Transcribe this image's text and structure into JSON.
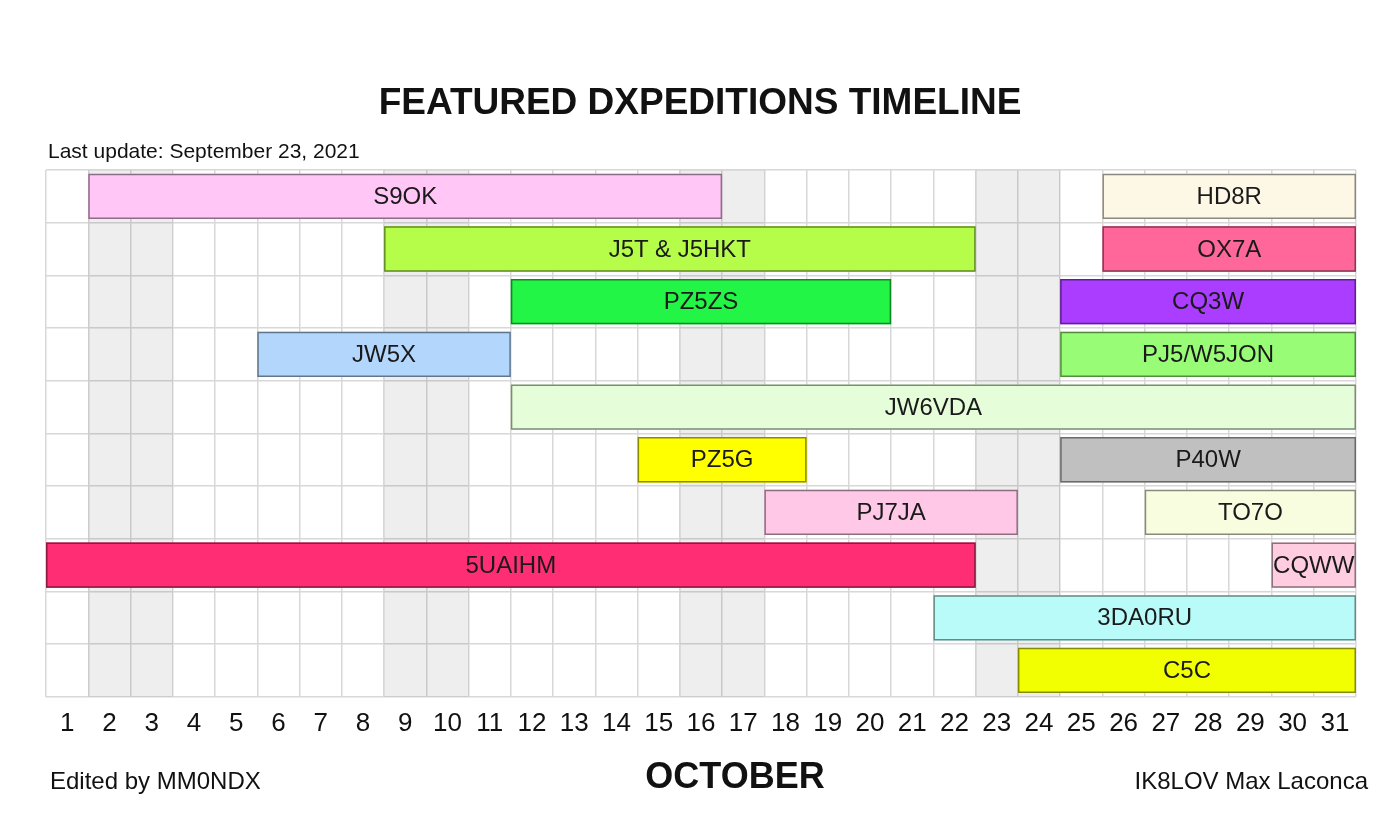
{
  "chart_data": {
    "type": "bar",
    "orientation": "horizontal",
    "title": "FEATURED DXPEDITIONS TIMELINE",
    "subtitle": "Last update: September 23, 2021",
    "xlabel": "OCTOBER",
    "annotations": [
      "Edited by MM0NDX",
      "IK8LOV Max Laconca"
    ],
    "categories": [
      null,
      null,
      null,
      null,
      null,
      null,
      null,
      null,
      null,
      null
    ],
    "series": [
      {
        "name": "S9OK",
        "color": "#ffc6f6",
        "base": [
          1.5,
          null,
          null,
          null,
          null,
          null,
          null,
          null,
          null,
          null
        ],
        "values": [
          15,
          null,
          null,
          null,
          null,
          null,
          null,
          null,
          null,
          null
        ]
      },
      {
        "name": "HD8R",
        "color": "#fdf8e6",
        "base": [
          25.5,
          null,
          null,
          null,
          null,
          null,
          null,
          null,
          null,
          null
        ],
        "values": [
          6,
          null,
          null,
          null,
          null,
          null,
          null,
          null,
          null,
          null
        ]
      },
      {
        "name": "J5T & J5HKT",
        "color": "#b6fd4a",
        "base": [
          null,
          8.5,
          null,
          null,
          null,
          null,
          null,
          null,
          null,
          null
        ],
        "values": [
          null,
          14,
          null,
          null,
          null,
          null,
          null,
          null,
          null,
          null
        ]
      },
      {
        "name": "OX7A",
        "color": "#ff6699",
        "base": [
          null,
          25.5,
          null,
          null,
          null,
          null,
          null,
          null,
          null,
          null
        ],
        "values": [
          null,
          6,
          null,
          null,
          null,
          null,
          null,
          null,
          null,
          null
        ]
      },
      {
        "name": "PZ5ZS",
        "color": "#22f545",
        "base": [
          null,
          null,
          11.5,
          null,
          null,
          null,
          null,
          null,
          null,
          null
        ],
        "values": [
          null,
          null,
          9,
          null,
          null,
          null,
          null,
          null,
          null,
          null
        ]
      },
      {
        "name": "CQ3W",
        "color": "#aa3dff",
        "base": [
          null,
          null,
          24.5,
          null,
          null,
          null,
          null,
          null,
          null,
          null
        ],
        "values": [
          null,
          null,
          7,
          null,
          null,
          null,
          null,
          null,
          null,
          null
        ]
      },
      {
        "name": "JW5X",
        "color": "#b3d6fc",
        "base": [
          null,
          null,
          null,
          5.5,
          null,
          null,
          null,
          null,
          null,
          null
        ],
        "values": [
          null,
          null,
          null,
          6,
          null,
          null,
          null,
          null,
          null,
          null
        ]
      },
      {
        "name": "PJ5/W5JON",
        "color": "#99fc77",
        "base": [
          null,
          null,
          null,
          24.5,
          null,
          null,
          null,
          null,
          null,
          null
        ],
        "values": [
          null,
          null,
          null,
          7,
          null,
          null,
          null,
          null,
          null,
          null
        ]
      },
      {
        "name": "JW6VDA",
        "color": "#e5fdd8",
        "base": [
          null,
          null,
          null,
          null,
          11.5,
          null,
          null,
          null,
          null,
          null
        ],
        "values": [
          null,
          null,
          null,
          null,
          20,
          null,
          null,
          null,
          null,
          null
        ]
      },
      {
        "name": "PZ5G",
        "color": "#ffff00",
        "base": [
          null,
          null,
          null,
          null,
          null,
          14.5,
          null,
          null,
          null,
          null
        ],
        "values": [
          null,
          null,
          null,
          null,
          null,
          4,
          null,
          null,
          null,
          null
        ]
      },
      {
        "name": "P40W",
        "color": "#c0c0c0",
        "base": [
          null,
          null,
          null,
          null,
          null,
          24.5,
          null,
          null,
          null,
          null
        ],
        "values": [
          null,
          null,
          null,
          null,
          null,
          7,
          null,
          null,
          null,
          null
        ]
      },
      {
        "name": "PJ7JA",
        "color": "#ffc8e6",
        "base": [
          null,
          null,
          null,
          null,
          null,
          null,
          17.5,
          null,
          null,
          null
        ],
        "values": [
          null,
          null,
          null,
          null,
          null,
          null,
          6,
          null,
          null,
          null
        ]
      },
      {
        "name": "TO7O",
        "color": "#f8fde0",
        "base": [
          null,
          null,
          null,
          null,
          null,
          null,
          26.5,
          null,
          null,
          null
        ],
        "values": [
          null,
          null,
          null,
          null,
          null,
          null,
          5,
          null,
          null,
          null
        ]
      },
      {
        "name": "5UAIHM",
        "color": "#ff2d73",
        "base": [
          null,
          null,
          null,
          null,
          null,
          null,
          null,
          0.5,
          null,
          null
        ],
        "values": [
          null,
          null,
          null,
          null,
          null,
          null,
          null,
          22,
          null,
          null
        ]
      },
      {
        "name": "CQWW",
        "color": "#ffcce0",
        "base": [
          null,
          null,
          null,
          null,
          null,
          null,
          null,
          29.5,
          null,
          null
        ],
        "values": [
          null,
          null,
          null,
          null,
          null,
          null,
          null,
          2,
          null,
          null
        ]
      },
      {
        "name": "3DA0RU",
        "color": "#b8fbf8",
        "base": [
          null,
          null,
          null,
          null,
          null,
          null,
          null,
          null,
          21.5,
          null
        ],
        "values": [
          null,
          null,
          null,
          null,
          null,
          null,
          null,
          null,
          10,
          null
        ]
      },
      {
        "name": "C5C",
        "color": "#f2ff00",
        "base": [
          null,
          null,
          null,
          null,
          null,
          null,
          null,
          null,
          null,
          23.5
        ],
        "values": [
          null,
          null,
          null,
          null,
          null,
          null,
          null,
          null,
          null,
          8
        ]
      }
    ],
    "xlim": [
      0.5,
      31.5
    ],
    "xticks": [
      1,
      2,
      3,
      4,
      5,
      6,
      7,
      8,
      9,
      10,
      11,
      12,
      13,
      14,
      15,
      16,
      17,
      18,
      19,
      20,
      21,
      22,
      23,
      24,
      25,
      26,
      27,
      28,
      29,
      30,
      31
    ],
    "bands": [
      {
        "axis": "x",
        "from": 1.5,
        "to": 3.5,
        "color": "#eeeeee"
      },
      {
        "axis": "x",
        "from": 8.5,
        "to": 10.5,
        "color": "#eeeeee"
      },
      {
        "axis": "x",
        "from": 15.5,
        "to": 17.5,
        "color": "#eeeeee"
      },
      {
        "axis": "x",
        "from": 22.5,
        "to": 24.5,
        "color": "#eeeeee"
      }
    ],
    "grid": true,
    "tick_labels": "x"
  }
}
